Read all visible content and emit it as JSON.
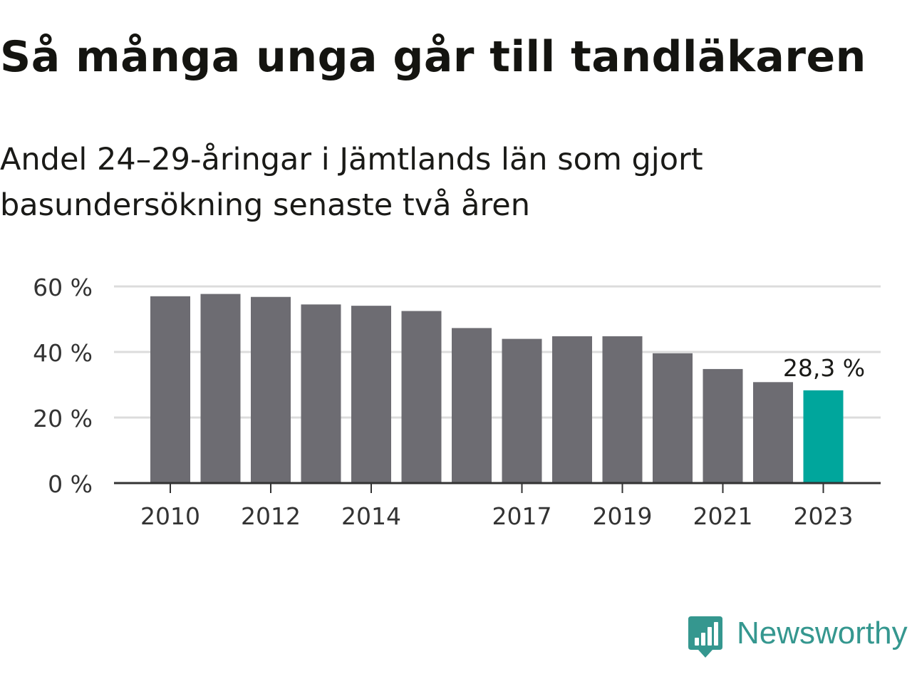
{
  "title": "Så många unga går till tandläkaren",
  "subtitle": "Andel 24–29-åringar i Jämtlands län som gjort basundersökning senaste två åren",
  "brand": {
    "name": "Newsworthy",
    "logo_icon": "bar-chart-speech-bubble-icon",
    "color": "#35978f"
  },
  "colors": {
    "bar": "#6d6c72",
    "highlight": "#00a69c",
    "grid": "#dcdcdc",
    "axis": "#333333"
  },
  "chart_data": {
    "type": "bar",
    "categories": [
      "2010",
      "2011",
      "2012",
      "2013",
      "2014",
      "2015",
      "2016",
      "2017",
      "2018",
      "2019",
      "2020",
      "2021",
      "2022",
      "2023"
    ],
    "values": [
      57.0,
      57.7,
      56.8,
      54.5,
      54.1,
      52.5,
      47.3,
      44.0,
      44.8,
      44.8,
      39.6,
      34.8,
      30.8,
      28.3
    ],
    "tick_categories": [
      "2010",
      "2012",
      "2014",
      "2017",
      "2019",
      "2021",
      "2023"
    ],
    "y_ticks": [
      0,
      20,
      40,
      60
    ],
    "y_tick_labels": [
      "0 %",
      "20 %",
      "40 %",
      "60 %"
    ],
    "ylim": [
      0,
      60
    ],
    "highlight_index": 13,
    "highlight_label": "28,3 %",
    "xlabel": "",
    "ylabel": "",
    "grid": true,
    "legend": "none"
  }
}
